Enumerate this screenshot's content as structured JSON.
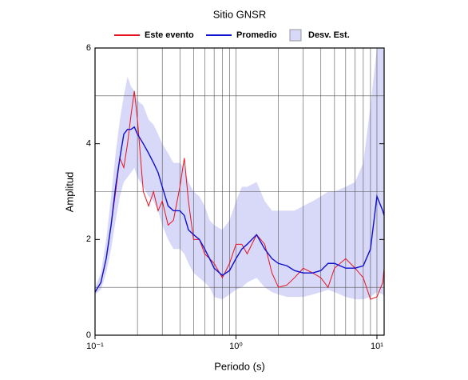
{
  "chart_data": {
    "type": "line",
    "title": "Sitio GNSR",
    "x_label": "Periodo (s)",
    "y_label": "Amplitud",
    "log_x": true,
    "xlim": [
      0.1,
      11.25
    ],
    "ylim": [
      0,
      6
    ],
    "xticks": [
      {
        "value": 0.1,
        "label": "10⁻¹"
      },
      {
        "value": 1,
        "label": "10⁰"
      },
      {
        "value": 10,
        "label": "10¹"
      }
    ],
    "yticks": [
      0,
      2,
      4,
      6
    ],
    "yminor": [
      1,
      3,
      5
    ],
    "grid": true,
    "x": [
      0.1,
      0.11,
      0.12,
      0.13,
      0.14,
      0.15,
      0.16,
      0.17,
      0.18,
      0.19,
      0.2,
      0.22,
      0.24,
      0.26,
      0.28,
      0.3,
      0.33,
      0.36,
      0.4,
      0.43,
      0.46,
      0.5,
      0.55,
      0.6,
      0.65,
      0.7,
      0.8,
      0.9,
      1.0,
      1.1,
      1.2,
      1.4,
      1.6,
      1.8,
      2.0,
      2.3,
      2.6,
      3.0,
      3.5,
      4.0,
      4.5,
      5,
      6,
      7,
      8,
      9,
      10,
      11,
      11.25
    ],
    "series": [
      {
        "name": "Este evento",
        "color": "#e8121e",
        "values": [
          0.9,
          1.1,
          1.6,
          2.3,
          3.0,
          3.7,
          3.5,
          4.0,
          4.6,
          5.1,
          4.5,
          3.0,
          2.7,
          3.0,
          2.6,
          2.8,
          2.3,
          2.4,
          3.1,
          3.7,
          2.8,
          2.0,
          2.0,
          1.7,
          1.6,
          1.5,
          1.2,
          1.5,
          1.9,
          1.9,
          1.7,
          2.1,
          1.9,
          1.3,
          1.0,
          1.05,
          1.2,
          1.4,
          1.3,
          1.2,
          1.0,
          1.4,
          1.6,
          1.4,
          1.2,
          0.75,
          0.8,
          1.1,
          1.4
        ]
      },
      {
        "name": "Promedio",
        "color": "#1010d0",
        "values": [
          0.9,
          1.1,
          1.6,
          2.3,
          3.1,
          3.7,
          4.2,
          4.3,
          4.3,
          4.35,
          4.2,
          4.0,
          3.8,
          3.6,
          3.4,
          3.1,
          2.7,
          2.6,
          2.6,
          2.5,
          2.2,
          2.1,
          2.0,
          1.8,
          1.6,
          1.4,
          1.25,
          1.35,
          1.6,
          1.8,
          1.9,
          2.1,
          1.8,
          1.6,
          1.5,
          1.45,
          1.35,
          1.3,
          1.3,
          1.35,
          1.5,
          1.5,
          1.4,
          1.4,
          1.45,
          1.8,
          2.9,
          2.6,
          2.5
        ]
      },
      {
        "name": "Desv. Est.",
        "color": "#d8d8f8",
        "upper": [
          1.0,
          1.3,
          2.0,
          2.9,
          3.8,
          4.5,
          5.0,
          5.4,
          5.2,
          5.1,
          4.9,
          4.8,
          4.5,
          4.4,
          4.2,
          4.0,
          3.8,
          3.6,
          3.6,
          3.5,
          3.2,
          3.0,
          2.9,
          2.7,
          2.4,
          2.3,
          2.2,
          2.4,
          2.8,
          3.1,
          3.1,
          3.2,
          2.8,
          2.6,
          2.6,
          2.6,
          2.6,
          2.7,
          2.8,
          2.9,
          3.0,
          3.0,
          3.1,
          3.2,
          3.6,
          4.8,
          6.0,
          6.0,
          5.9
        ],
        "lower": [
          0.85,
          0.95,
          1.3,
          1.8,
          2.4,
          2.9,
          3.2,
          3.3,
          3.4,
          3.5,
          3.3,
          3.1,
          2.9,
          2.8,
          2.6,
          2.3,
          2.0,
          1.8,
          1.8,
          1.7,
          1.5,
          1.3,
          1.2,
          1.1,
          1.0,
          0.8,
          0.75,
          0.85,
          0.95,
          1.0,
          1.1,
          1.2,
          1.0,
          0.9,
          0.85,
          0.8,
          0.8,
          0.8,
          0.85,
          0.9,
          0.95,
          0.9,
          0.8,
          0.75,
          0.75,
          0.8,
          0.9,
          0.85,
          0.8
        ]
      }
    ]
  }
}
